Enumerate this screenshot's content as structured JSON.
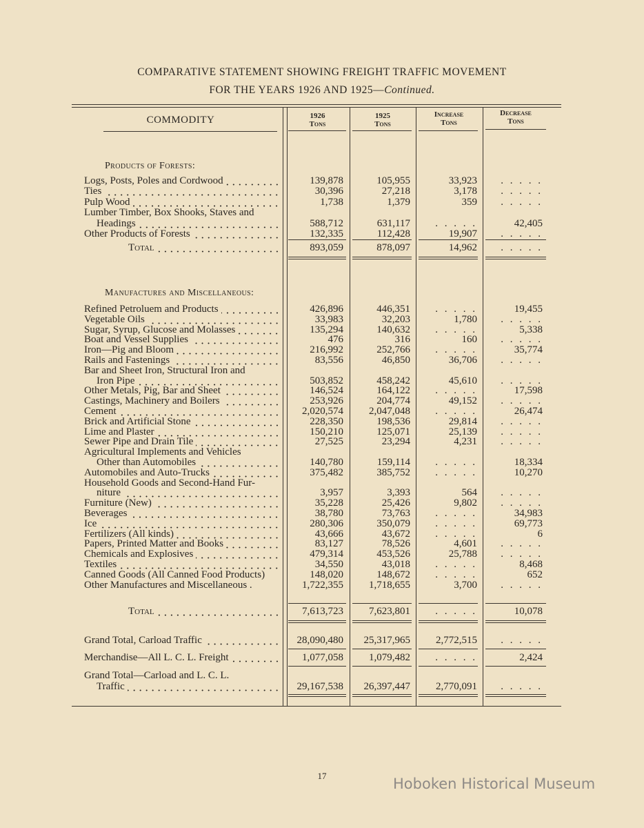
{
  "title_line1": "COMPARATIVE STATEMENT SHOWING FREIGHT TRAFFIC MOVEMENT",
  "title_line2_prefix": "FOR THE YEARS 1926 AND 1925—",
  "title_line2_suffix": "Continued.",
  "headers": {
    "commodity": "COMMODITY",
    "c1926": [
      "1926",
      "Tons"
    ],
    "c1925": [
      "1925",
      "Tons"
    ],
    "increase": [
      "Increase",
      "Tons"
    ],
    "decrease": [
      "Decrease",
      "Tons"
    ]
  },
  "sections": [
    {
      "title": "Products of Forests:",
      "rows": [
        {
          "label": "Logs, Posts, Poles and Cordwood",
          "v1926": "139,878",
          "v1925": "105,955",
          "inc": "33,923",
          "dec": "....."
        },
        {
          "label": "Ties",
          "v1926": "30,396",
          "v1925": "27,218",
          "inc": "3,178",
          "dec": "....."
        },
        {
          "label": "Pulp Wood",
          "v1926": "1,738",
          "v1925": "1,379",
          "inc": "359",
          "dec": "....."
        },
        {
          "label": "Lumber Timber, Box Shooks, Staves and",
          "label2": "Headings",
          "v1926": "588,712",
          "v1925": "631,117",
          "inc": ".....",
          "dec": "42,405"
        },
        {
          "label": "Other Products of Forests",
          "v1926": "132,335",
          "v1925": "112,428",
          "inc": "19,907",
          "dec": "....."
        }
      ],
      "total": {
        "label": "Total",
        "v1926": "893,059",
        "v1925": "878,097",
        "inc": "14,962",
        "dec": "....."
      }
    },
    {
      "title": "Manufactures and Miscellaneous:",
      "rows": [
        {
          "label": "Refined Petroluem and Products",
          "v1926": "426,896",
          "v1925": "446,351",
          "inc": ".....",
          "dec": "19,455"
        },
        {
          "label": "Vegetable Oils",
          "v1926": "33,983",
          "v1925": "32,203",
          "inc": "1,780",
          "dec": "....."
        },
        {
          "label": "Sugar, Syrup, Glucose and Molasses",
          "v1926": "135,294",
          "v1925": "140,632",
          "inc": ".....",
          "dec": "5,338"
        },
        {
          "label": "Boat and Vessel Supplies",
          "v1926": "476",
          "v1925": "316",
          "inc": "160",
          "dec": "....."
        },
        {
          "label": "Iron—Pig and Bloom",
          "v1926": "216,992",
          "v1925": "252,766",
          "inc": ".....",
          "dec": "35,774"
        },
        {
          "label": "Rails and Fastenings",
          "v1926": "83,556",
          "v1925": "46,850",
          "inc": "36,706",
          "dec": "....."
        },
        {
          "label": "Bar and Sheet Iron, Structural Iron and",
          "label2": "Iron Pipe",
          "v1926": "503,852",
          "v1925": "458,242",
          "inc": "45,610",
          "dec": "....."
        },
        {
          "label": "Other Metals, Pig, Bar and Sheet",
          "v1926": "146,524",
          "v1925": "164,122",
          "inc": ".....",
          "dec": "17,598"
        },
        {
          "label": "Castings, Machinery and Boilers",
          "v1926": "253,926",
          "v1925": "204,774",
          "inc": "49,152",
          "dec": "....."
        },
        {
          "label": "Cement",
          "v1926": "2,020,574",
          "v1925": "2,047,048",
          "inc": ".....",
          "dec": "26,474"
        },
        {
          "label": "Brick and Artificial Stone",
          "v1926": "228,350",
          "v1925": "198,536",
          "inc": "29,814",
          "dec": "....."
        },
        {
          "label": "Lime and Plaster",
          "v1926": "150,210",
          "v1925": "125,071",
          "inc": "25,139",
          "dec": "....."
        },
        {
          "label": "Sewer Pipe and Drain Tile",
          "v1926": "27,525",
          "v1925": "23,294",
          "inc": "4,231",
          "dec": "....."
        },
        {
          "label": "Agricultural Implements and Vehicles",
          "label2": "Other than Automobiles",
          "v1926": "140,780",
          "v1925": "159,114",
          "inc": ".....",
          "dec": "18,334"
        },
        {
          "label": "Automobiles and Auto-Trucks",
          "v1926": "375,482",
          "v1925": "385,752",
          "inc": ".....",
          "dec": "10,270"
        },
        {
          "label": "Household Goods and Second-Hand Fur-",
          "label2": "niture",
          "v1926": "3,957",
          "v1925": "3,393",
          "inc": "564",
          "dec": "....."
        },
        {
          "label": "Furniture (New)",
          "v1926": "35,228",
          "v1925": "25,426",
          "inc": "9,802",
          "dec": "....."
        },
        {
          "label": "Beverages",
          "v1926": "38,780",
          "v1925": "73,763",
          "inc": ".....",
          "dec": "34,983"
        },
        {
          "label": "Ice",
          "v1926": "280,306",
          "v1925": "350,079",
          "inc": ".....",
          "dec": "69,773"
        },
        {
          "label": "Fertilizers (All kinds)",
          "v1926": "43,666",
          "v1925": "43,672",
          "inc": ".....",
          "dec": "6"
        },
        {
          "label": "Papers, Printed Matter and Books",
          "v1926": "83,127",
          "v1925": "78,526",
          "inc": "4,601",
          "dec": "....."
        },
        {
          "label": "Chemicals and Explosives",
          "v1926": "479,314",
          "v1925": "453,526",
          "inc": "25,788",
          "dec": "....."
        },
        {
          "label": "Textiles",
          "v1926": "34,550",
          "v1925": "43,018",
          "inc": ".....",
          "dec": "8,468"
        },
        {
          "label": "Canned Goods (All Canned Food Products)",
          "noleader": true,
          "v1926": "148,020",
          "v1925": "148,672",
          "inc": ".....",
          "dec": "652"
        },
        {
          "label": "Other Manufactures and Miscellaneous .",
          "noleader": true,
          "v1926": "1,722,355",
          "v1925": "1,718,655",
          "inc": "3,700",
          "dec": "....."
        }
      ],
      "total": {
        "label": "Total",
        "v1926": "7,613,723",
        "v1925": "7,623,801",
        "inc": ".....",
        "dec": "10,078"
      }
    }
  ],
  "grand": [
    {
      "label": "Grand Total, Carload Traffic",
      "v1926": "28,090,480",
      "v1925": "25,317,965",
      "inc": "2,772,515",
      "dec": "....."
    },
    {
      "label": "Merchandise—All L. C. L. Freight",
      "v1926": "1,077,058",
      "v1925": "1,079,482",
      "inc": ".....",
      "dec": "2,424"
    },
    {
      "label": "Grand Total—Carload and L. C. L.",
      "label2": "Traffic",
      "v1926": "29,167,538",
      "v1925": "26,397,447",
      "inc": "2,770,091",
      "dec": "....."
    }
  ],
  "page_number": "17",
  "watermark": "Hoboken Historical Museum"
}
